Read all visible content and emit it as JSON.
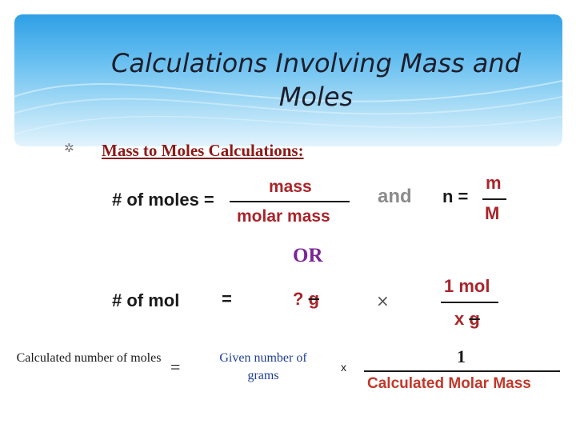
{
  "slide": {
    "title": "Calculations Involving Mass and Moles",
    "subtitle": "Mass to Moles Calculations:",
    "bullet_icon": "asterisk-bullet-icon",
    "colors": {
      "header_top": "#2f9fe6",
      "header_bottom": "#e3f4fd",
      "subtitle": "#8b1a17",
      "formula_red": "#a8252b",
      "or_purple": "#7a2696",
      "given_blue": "#1f3f99"
    }
  },
  "formula1": {
    "lhs": "# of moles =",
    "numerator": "mass",
    "denominator": "molar mass",
    "connector": "and",
    "n_lhs": "n =",
    "n_numerator": "m",
    "n_denominator": "M"
  },
  "or_label": "OR",
  "formula2": {
    "lhs": "# of mol",
    "equals": "=",
    "given_prefix": "? ",
    "given_unit": "g",
    "times": "×",
    "numerator": "1 mol",
    "denominator_prefix": "x ",
    "denominator_unit": "g"
  },
  "formula3": {
    "lhs": "Calculated number of moles",
    "equals": "=",
    "given": "Given number of grams",
    "times": "x",
    "numerator": "1",
    "denominator": "Calculated Molar Mass"
  }
}
